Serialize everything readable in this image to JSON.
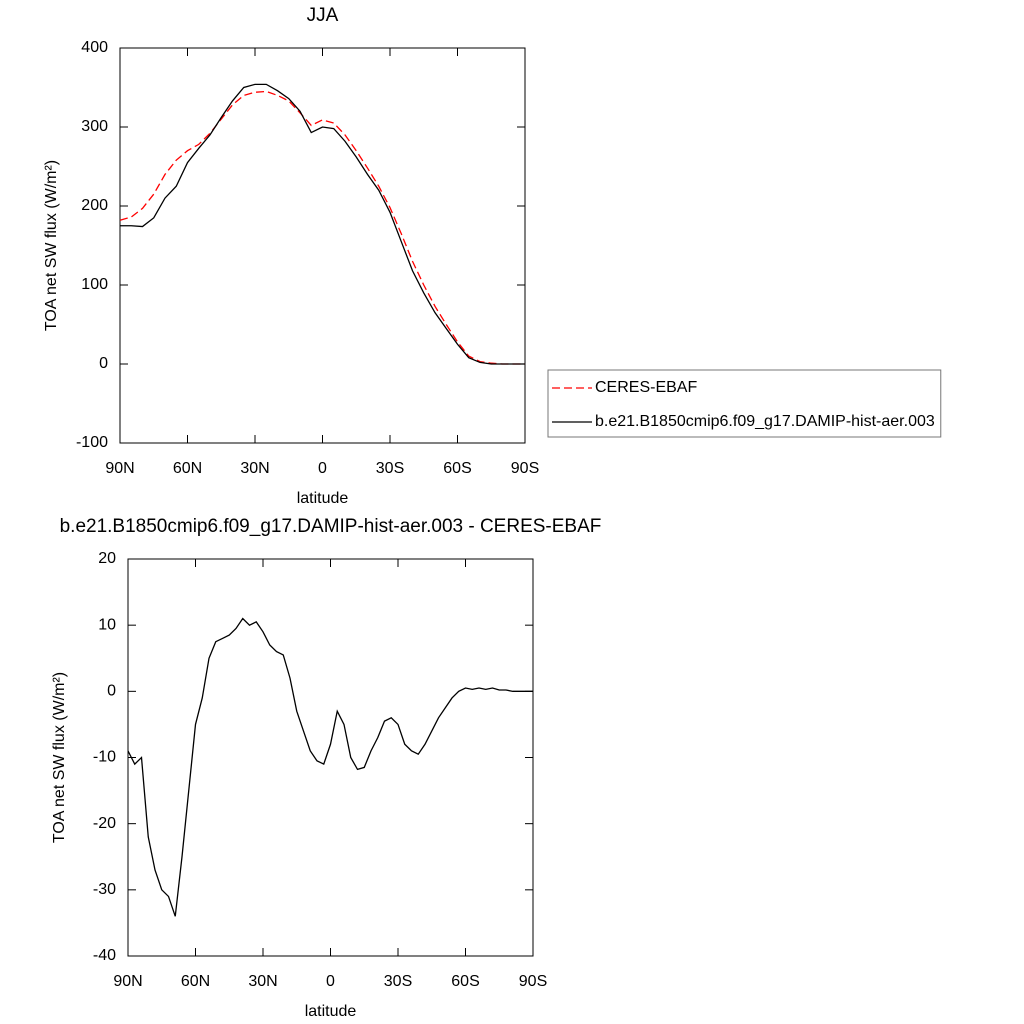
{
  "chart_data": [
    {
      "type": "line",
      "title": "JJA",
      "xlabel": "latitude",
      "ylabel": "TOA net SW flux (W/m²)",
      "x": [
        90,
        85,
        80,
        75,
        70,
        65,
        60,
        55,
        50,
        45,
        40,
        35,
        30,
        25,
        20,
        15,
        10,
        5,
        0,
        -5,
        -10,
        -15,
        -20,
        -25,
        -30,
        -35,
        -40,
        -45,
        -50,
        -55,
        -60,
        -65,
        -70,
        -75,
        -80,
        -85,
        -90
      ],
      "series": [
        {
          "name": "CERES-EBAF",
          "color": "#ff0000",
          "linestyle": "dashed",
          "values": [
            182,
            186,
            197,
            215,
            240,
            258,
            270,
            278,
            292,
            310,
            328,
            340,
            344,
            345,
            340,
            333,
            318,
            302,
            309,
            305,
            290,
            270,
            248,
            225,
            198,
            165,
            130,
            100,
            73,
            50,
            28,
            10,
            3,
            1,
            0,
            0,
            0
          ]
        },
        {
          "name": "b.e21.B1850cmip6.f09_g17.DAMIP-hist-aer.003",
          "color": "#000000",
          "linestyle": "solid",
          "values": [
            175,
            175,
            174,
            185,
            210,
            225,
            255,
            273,
            290,
            312,
            333,
            350,
            354,
            354,
            346,
            336,
            320,
            293,
            300,
            298,
            282,
            262,
            240,
            220,
            192,
            155,
            118,
            90,
            65,
            45,
            25,
            8,
            2,
            0,
            0,
            0,
            0
          ]
        }
      ],
      "xlim": [
        90,
        -90
      ],
      "xticks": [
        {
          "value": 90,
          "label": "90N"
        },
        {
          "value": 60,
          "label": "60N"
        },
        {
          "value": 30,
          "label": "30N"
        },
        0,
        {
          "value": -30,
          "label": "30S"
        },
        {
          "value": -60,
          "label": "60S"
        },
        {
          "value": -90,
          "label": "90S"
        }
      ],
      "ylim": [
        -100,
        400
      ],
      "yticks": [
        -100,
        0,
        100,
        200,
        300,
        400
      ],
      "legend": "right"
    },
    {
      "type": "line",
      "title": "b.e21.B1850cmip6.f09_g17.DAMIP-hist-aer.003 - CERES-EBAF",
      "xlabel": "latitude",
      "ylabel": "TOA net SW flux (W/m²)",
      "x": [
        90,
        87,
        84,
        81,
        78,
        75,
        72,
        69,
        66,
        63,
        60,
        57,
        54,
        51,
        48,
        45,
        42,
        39,
        36,
        33,
        30,
        27,
        24,
        21,
        18,
        15,
        12,
        9,
        6,
        3,
        0,
        -3,
        -6,
        -9,
        -12,
        -15,
        -18,
        -21,
        -24,
        -27,
        -30,
        -33,
        -36,
        -39,
        -42,
        -45,
        -48,
        -51,
        -54,
        -57,
        -60,
        -63,
        -66,
        -69,
        -72,
        -75,
        -78,
        -81,
        -84,
        -87,
        -90
      ],
      "color": "#000000",
      "values": [
        -9,
        -11,
        -10,
        -22,
        -27,
        -30,
        -31,
        -34,
        -25,
        -15,
        -5,
        -1,
        5,
        7.5,
        8,
        8.5,
        9.5,
        11,
        10,
        10.5,
        9,
        7,
        6,
        5.5,
        2,
        -3,
        -6,
        -9,
        -10.5,
        -11,
        -8,
        -3,
        -5,
        -10,
        -11.8,
        -11.5,
        -9,
        -7,
        -4.5,
        -4,
        -5,
        -8,
        -9,
        -9.5,
        -8,
        -6,
        -4,
        -2.5,
        -1,
        0,
        0.5,
        0.3,
        0.5,
        0.3,
        0.5,
        0.2,
        0.2,
        0,
        0,
        0,
        0
      ],
      "xlim": [
        90,
        -90
      ],
      "xticks": [
        {
          "value": 90,
          "label": "90N"
        },
        {
          "value": 60,
          "label": "60N"
        },
        {
          "value": 30,
          "label": "30N"
        },
        0,
        {
          "value": -30,
          "label": "30S"
        },
        {
          "value": -60,
          "label": "60S"
        },
        {
          "value": -90,
          "label": "90S"
        }
      ],
      "ylim": [
        -40,
        20
      ],
      "yticks": [
        -40,
        -30,
        -20,
        -10,
        0,
        10,
        20
      ]
    }
  ]
}
